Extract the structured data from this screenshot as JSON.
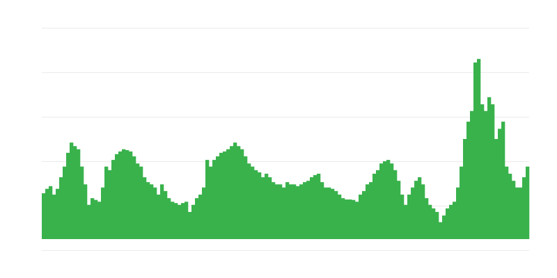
{
  "chart_data": {
    "type": "bar",
    "title": "",
    "xlabel": "",
    "ylabel": "",
    "grid": true,
    "bar_color": "#39b24c",
    "grid_color": "#ebebeb",
    "values": [
      1.03,
      1.13,
      1.19,
      1.0,
      1.13,
      1.39,
      1.63,
      1.94,
      2.17,
      2.09,
      2.02,
      1.63,
      1.23,
      0.77,
      0.92,
      0.88,
      0.84,
      1.16,
      1.63,
      1.55,
      1.78,
      1.91,
      1.97,
      2.02,
      2.0,
      1.97,
      1.86,
      1.7,
      1.63,
      1.39,
      1.28,
      1.23,
      1.16,
      1.0,
      1.23,
      1.08,
      0.92,
      0.84,
      0.81,
      0.77,
      0.81,
      0.84,
      0.61,
      0.77,
      0.92,
      1.0,
      1.16,
      1.78,
      1.63,
      1.78,
      1.86,
      1.94,
      1.97,
      2.02,
      2.09,
      2.17,
      2.09,
      2.02,
      1.86,
      1.7,
      1.63,
      1.55,
      1.5,
      1.39,
      1.47,
      1.39,
      1.28,
      1.23,
      1.23,
      1.16,
      1.28,
      1.23,
      1.23,
      1.19,
      1.23,
      1.28,
      1.31,
      1.39,
      1.44,
      1.47,
      1.28,
      1.16,
      1.16,
      1.13,
      1.08,
      1.0,
      0.92,
      0.89,
      0.89,
      0.88,
      0.84,
      1.0,
      1.08,
      1.23,
      1.28,
      1.47,
      1.55,
      1.7,
      1.75,
      1.78,
      1.7,
      1.55,
      1.31,
      1.0,
      0.77,
      1.0,
      1.16,
      1.31,
      1.39,
      1.23,
      0.92,
      0.77,
      0.69,
      0.61,
      0.38,
      0.53,
      0.69,
      0.77,
      0.84,
      1.16,
      1.63,
      2.25,
      2.64,
      2.88,
      3.97,
      4.05,
      3.03,
      2.88,
      3.19,
      3.03,
      2.25,
      2.48,
      2.64,
      1.63,
      1.47,
      1.31,
      1.16,
      1.16,
      1.39,
      1.63
    ]
  }
}
